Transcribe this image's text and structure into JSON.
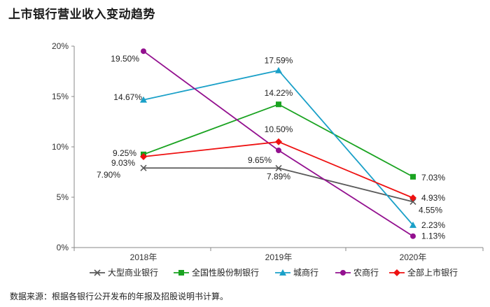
{
  "title": "上市银行营业收入变动趋势",
  "source": "数据来源：根据各银行公开发布的年报及招股说明书计算。",
  "chart_data": {
    "type": "line",
    "categories": [
      "2018年",
      "2019年",
      "2020年"
    ],
    "ylim": [
      0,
      20
    ],
    "yticks": [
      "0%",
      "5%",
      "10%",
      "15%",
      "20%"
    ],
    "ytick_values": [
      0,
      5,
      10,
      15,
      20
    ],
    "legend_position": "bottom",
    "series": [
      {
        "name": "大型商业银行",
        "color": "#595959",
        "marker": "x",
        "values": [
          7.9,
          7.89,
          4.55
        ],
        "labels": [
          "7.90%",
          "7.89%",
          "4.55%"
        ]
      },
      {
        "name": "全国性股份制银行",
        "color": "#1aa321",
        "marker": "square",
        "values": [
          9.25,
          14.22,
          7.03
        ],
        "labels": [
          "9.25%",
          "14.22%",
          "7.03%"
        ]
      },
      {
        "name": "城商行",
        "color": "#1aa0c8",
        "marker": "triangle",
        "values": [
          14.67,
          17.59,
          2.23
        ],
        "labels": [
          "14.67%",
          "17.59%",
          "2.23%"
        ]
      },
      {
        "name": "农商行",
        "color": "#93108f",
        "marker": "circle",
        "values": [
          19.5,
          9.65,
          1.13
        ],
        "labels": [
          "19.50%",
          "9.65%",
          "1.13%"
        ]
      },
      {
        "name": "全部上市银行",
        "color": "#ee1111",
        "marker": "diamond",
        "values": [
          9.03,
          10.5,
          4.93
        ],
        "labels": [
          "9.03%",
          "10.50%",
          "4.93%"
        ]
      }
    ]
  }
}
